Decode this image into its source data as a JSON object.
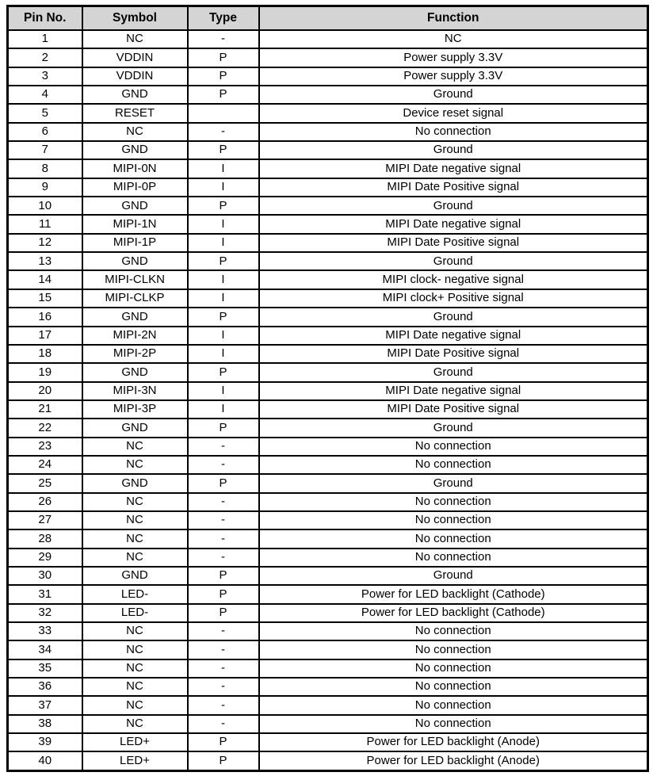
{
  "table": {
    "header_bg": "#d4d4d4",
    "border_color": "#000000",
    "headers": {
      "pin": "Pin No.",
      "symbol": "Symbol",
      "type": "Type",
      "function": "Function"
    },
    "rows": [
      [
        "1",
        "NC",
        "-",
        "NC"
      ],
      [
        "2",
        "VDDIN",
        "P",
        "Power supply 3.3V"
      ],
      [
        "3",
        "VDDIN",
        "P",
        "Power supply 3.3V"
      ],
      [
        "4",
        "GND",
        "P",
        "Ground"
      ],
      [
        "5",
        "RESET",
        "",
        "Device reset signal"
      ],
      [
        "6",
        "NC",
        "-",
        "No connection"
      ],
      [
        "7",
        "GND",
        "P",
        "Ground"
      ],
      [
        "8",
        "MIPI-0N",
        "I",
        "MIPI Date negative signal"
      ],
      [
        "9",
        "MIPI-0P",
        "I",
        "MIPI Date Positive signal"
      ],
      [
        "10",
        "GND",
        "P",
        "Ground"
      ],
      [
        "11",
        "MIPI-1N",
        "I",
        "MIPI Date negative signal"
      ],
      [
        "12",
        "MIPI-1P",
        "I",
        "MIPI Date Positive signal"
      ],
      [
        "13",
        "GND",
        "P",
        "Ground"
      ],
      [
        "14",
        "MIPI-CLKN",
        "I",
        "MIPI clock- negative signal"
      ],
      [
        "15",
        "MIPI-CLKP",
        "I",
        "MIPI clock+ Positive signal"
      ],
      [
        "16",
        "GND",
        "P",
        "Ground"
      ],
      [
        "17",
        "MIPI-2N",
        "I",
        "MIPI Date negative signal"
      ],
      [
        "18",
        "MIPI-2P",
        "I",
        "MIPI Date Positive signal"
      ],
      [
        "19",
        "GND",
        "P",
        "Ground"
      ],
      [
        "20",
        "MIPI-3N",
        "I",
        "MIPI Date negative signal"
      ],
      [
        "21",
        "MIPI-3P",
        "I",
        "MIPI Date Positive signal"
      ],
      [
        "22",
        "GND",
        "P",
        "Ground"
      ],
      [
        "23",
        "NC",
        "-",
        "No connection"
      ],
      [
        "24",
        "NC",
        "-",
        "No connection"
      ],
      [
        "25",
        "GND",
        "P",
        "Ground"
      ],
      [
        "26",
        "NC",
        "-",
        "No connection"
      ],
      [
        "27",
        "NC",
        "-",
        "No connection"
      ],
      [
        "28",
        "NC",
        "-",
        "No connection"
      ],
      [
        "29",
        "NC",
        "-",
        "No connection"
      ],
      [
        "30",
        "GND",
        "P",
        "Ground"
      ],
      [
        "31",
        "LED-",
        "P",
        "Power for LED backlight (Cathode)"
      ],
      [
        "32",
        "LED-",
        "P",
        "Power for LED backlight (Cathode)"
      ],
      [
        "33",
        "NC",
        "-",
        "No connection"
      ],
      [
        "34",
        "NC",
        "-",
        "No connection"
      ],
      [
        "35",
        "NC",
        "-",
        "No connection"
      ],
      [
        "36",
        "NC",
        "-",
        "No connection"
      ],
      [
        "37",
        "NC",
        "-",
        "No connection"
      ],
      [
        "38",
        "NC",
        "-",
        "No connection"
      ],
      [
        "39",
        "LED+",
        "P",
        "Power for LED backlight (Anode)"
      ],
      [
        "40",
        "LED+",
        "P",
        "Power for LED backlight (Anode)"
      ]
    ]
  }
}
